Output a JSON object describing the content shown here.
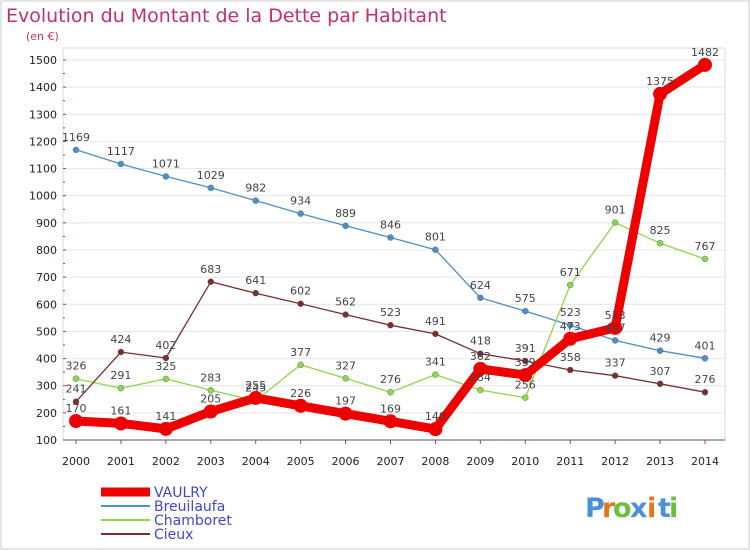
{
  "chart_data": {
    "type": "line",
    "title": "Evolution du Montant de la Dette par Habitant",
    "subtitle": "(en €)",
    "xlabel": "",
    "ylabel": "",
    "x": [
      "2000",
      "2001",
      "2002",
      "2003",
      "2004",
      "2005",
      "2006",
      "2007",
      "2008",
      "2009",
      "2010",
      "2011",
      "2012",
      "2013",
      "2014"
    ],
    "ylim": [
      100,
      1500
    ],
    "yticks": [
      "100",
      "200",
      "300",
      "400",
      "500",
      "600",
      "700",
      "800",
      "900",
      "1000",
      "1100",
      "1200",
      "1300",
      "1400",
      "1500"
    ],
    "grid": "horizontal",
    "legend_position": "bottom-left",
    "series": [
      {
        "name": "Breuilaufa",
        "color": "#4f8fc7",
        "values": [
          1169,
          1117,
          1071,
          1029,
          982,
          934,
          889,
          846,
          801,
          624,
          575,
          523,
          467,
          429,
          401
        ]
      },
      {
        "name": "Chamboret",
        "color": "#8ed64d",
        "values": [
          326,
          291,
          325,
          283,
          245,
          377,
          327,
          276,
          341,
          284,
          256,
          671,
          901,
          825,
          767
        ]
      },
      {
        "name": "Cieux",
        "color": "#7a2f2f",
        "values": [
          241,
          424,
          402,
          683,
          641,
          602,
          562,
          523,
          491,
          418,
          391,
          358,
          337,
          307,
          276
        ]
      },
      {
        "name": "VAULRY",
        "color": "#ee0000",
        "values": [
          170,
          161,
          141,
          205,
          255,
          226,
          197,
          169,
          140,
          362,
          339,
          473,
          513,
          1375,
          1482
        ]
      }
    ],
    "data_labels": [
      {
        "series": "Breuilaufa",
        "labels": [
          "1169",
          "1117",
          "1071",
          "1029",
          "982",
          "934",
          "889",
          "846",
          "801",
          "624",
          "575",
          "523",
          "467",
          "429",
          "401"
        ]
      },
      {
        "series": "Chamboret",
        "labels": [
          "326",
          "291",
          "325",
          "283",
          "245",
          "377",
          "327",
          "276",
          "341",
          "284",
          "256",
          "671",
          "901",
          "825",
          "767"
        ]
      },
      {
        "series": "Cieux",
        "labels": [
          "241",
          "424",
          "402",
          "683",
          "641",
          "602",
          "562",
          "523",
          "491",
          "418",
          "391",
          "358",
          "337",
          "307",
          "276"
        ]
      },
      {
        "series": "VAULRY",
        "labels": [
          "170",
          "161",
          "141",
          "205",
          "255",
          "226",
          "197",
          "169",
          "140",
          "362",
          "339",
          "473",
          "513",
          "1375",
          "1482"
        ]
      }
    ],
    "legend": [
      "VAULRY",
      "Breuilaufa",
      "Chamboret",
      "Cieux"
    ]
  },
  "brand": {
    "text": "Proxiti",
    "letters": [
      "P",
      "r",
      "o",
      "x",
      "i",
      "t",
      "i"
    ],
    "colors": [
      "#4a90d9",
      "#e8741a",
      "#6bbf3a",
      "#4a90d9",
      "#e8741a",
      "#4a90d9",
      "#6bbf3a"
    ]
  }
}
